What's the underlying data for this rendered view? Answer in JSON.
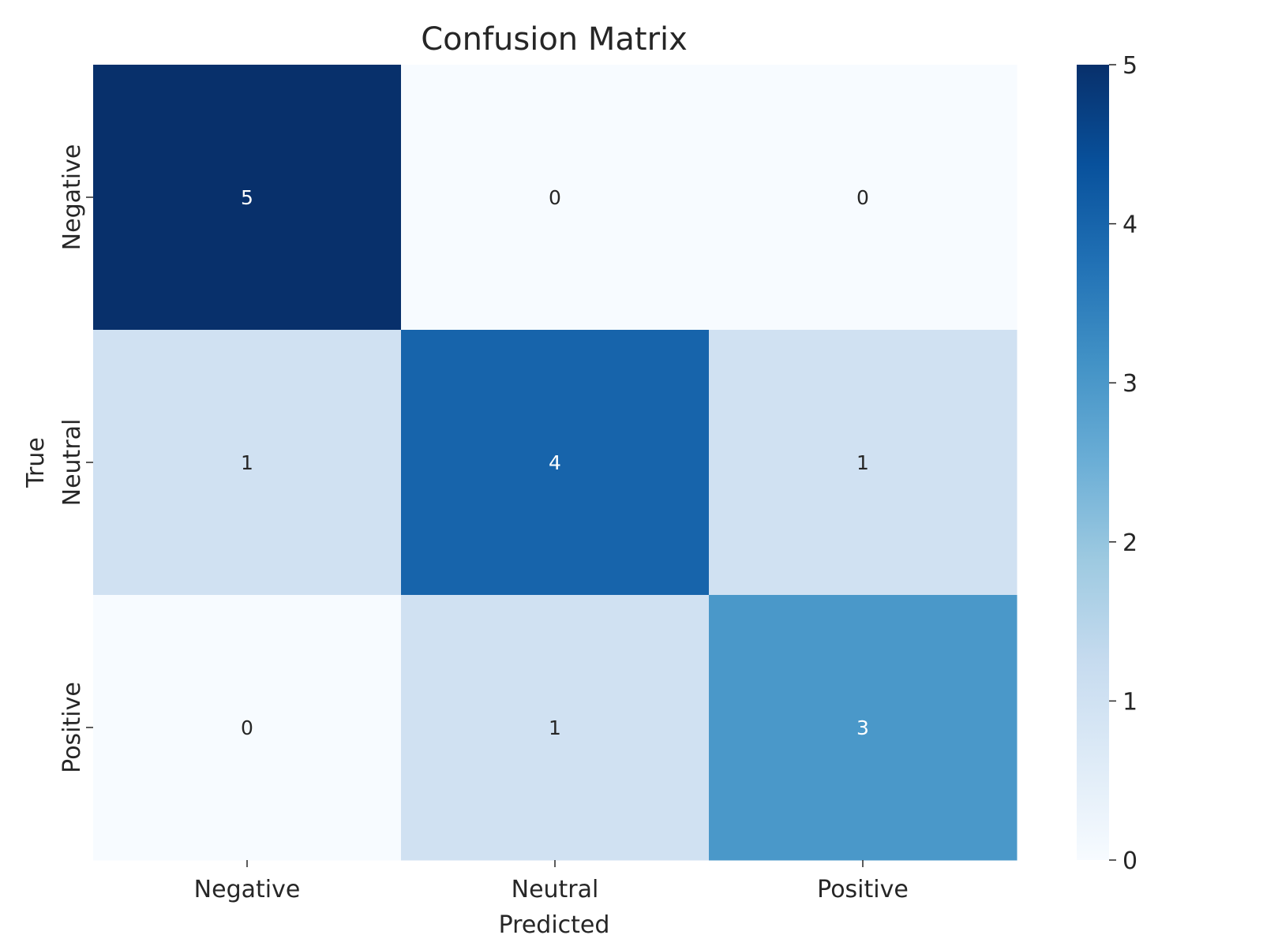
{
  "chart_data": {
    "type": "heatmap",
    "title": "Confusion Matrix",
    "xlabel": "Predicted",
    "ylabel": "True",
    "x_categories": [
      "Negative",
      "Neutral",
      "Positive"
    ],
    "y_categories": [
      "Negative",
      "Neutral",
      "Positive"
    ],
    "values": [
      [
        5,
        0,
        0
      ],
      [
        1,
        4,
        1
      ],
      [
        0,
        1,
        3
      ]
    ],
    "colorbar": {
      "range": [
        0,
        5
      ],
      "ticks": [
        "0",
        "1",
        "2",
        "3",
        "4",
        "5"
      ],
      "colormap": "Blues",
      "colors": [
        "#f7fbff",
        "#deebf7",
        "#c6dbef",
        "#9ecae1",
        "#6baed6",
        "#4292c6",
        "#2171b5",
        "#08519c",
        "#08306b"
      ]
    },
    "annotation_colors": {
      "light": "#ffffff",
      "dark": "#262626"
    }
  }
}
